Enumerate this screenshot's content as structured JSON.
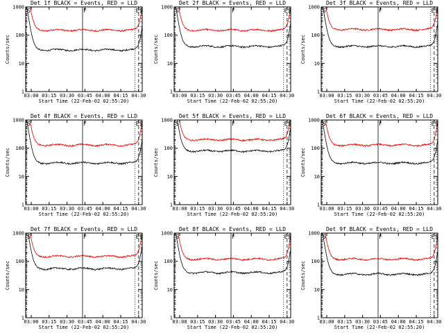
{
  "chart_data": [
    {
      "type": "line",
      "title": "Det 1f BLACK = Events, RED = LLD",
      "xlabel": "Start Time (22-Feb-02 02:55:20)",
      "ylabel": "Counts/sec",
      "yscale": "log",
      "ylim": [
        1,
        1000
      ],
      "xlim": [
        "02:55:20",
        "04:33:00"
      ],
      "x_ticks": [
        "03:00",
        "03:15",
        "03:30",
        "03:45",
        "04:00",
        "04:15",
        "04:30"
      ],
      "y_ticks": [
        "1",
        "10",
        "100",
        "1000"
      ],
      "markers": [
        {
          "label": "S",
          "time": "02:56"
        },
        {
          "label": "F",
          "time": "03:43"
        },
        {
          "label": "E",
          "time": "04:27"
        },
        {
          "label": "S",
          "time": "04:30"
        }
      ],
      "series": [
        {
          "name": "RED = LLD",
          "color": "#e00000",
          "level": 150
        },
        {
          "name": "BLACK = Events",
          "color": "#000000",
          "level": 30
        }
      ]
    },
    {
      "type": "line",
      "title": "Det 2f BLACK = Events, RED = LLD",
      "xlabel": "Start Time (22-Feb-02 02:55:20)",
      "ylabel": "Counts/sec",
      "yscale": "log",
      "ylim": [
        1,
        1000
      ],
      "xlim": [
        "02:55:20",
        "04:33:00"
      ],
      "x_ticks": [
        "03:00",
        "03:15",
        "03:30",
        "03:45",
        "04:00",
        "04:15",
        "04:30"
      ],
      "y_ticks": [
        "1",
        "10",
        "100",
        "1000"
      ],
      "markers": [
        {
          "label": "S",
          "time": "02:56"
        },
        {
          "label": "F",
          "time": "03:43"
        },
        {
          "label": "E",
          "time": "04:27"
        },
        {
          "label": "S",
          "time": "04:30"
        }
      ],
      "series": [
        {
          "name": "RED = LLD",
          "color": "#e00000",
          "level": 150
        },
        {
          "name": "BLACK = Events",
          "color": "#000000",
          "level": 40
        }
      ]
    },
    {
      "type": "line",
      "title": "Det 3f BLACK = Events, RED = LLD",
      "xlabel": "Start Time (22-Feb-02 02:55:20)",
      "ylabel": "Counts/sec",
      "yscale": "log",
      "ylim": [
        1,
        1000
      ],
      "xlim": [
        "02:55:20",
        "04:33:00"
      ],
      "x_ticks": [
        "03:00",
        "03:15",
        "03:30",
        "03:45",
        "04:00",
        "04:15",
        "04:30"
      ],
      "y_ticks": [
        "1",
        "10",
        "100",
        "1000"
      ],
      "markers": [
        {
          "label": "S",
          "time": "02:56"
        },
        {
          "label": "F",
          "time": "03:43"
        },
        {
          "label": "E",
          "time": "04:27"
        },
        {
          "label": "S",
          "time": "04:30"
        }
      ],
      "series": [
        {
          "name": "RED = LLD",
          "color": "#e00000",
          "level": 160
        },
        {
          "name": "BLACK = Events",
          "color": "#000000",
          "level": 40
        }
      ]
    },
    {
      "type": "line",
      "title": "Det 4f BLACK = Events, RED = LLD",
      "xlabel": "Start Time (22-Feb-02 02:55:20)",
      "ylabel": "Counts/sec",
      "yscale": "log",
      "ylim": [
        1,
        1000
      ],
      "xlim": [
        "02:55:20",
        "04:33:00"
      ],
      "x_ticks": [
        "03:00",
        "03:15",
        "03:30",
        "03:45",
        "04:00",
        "04:15",
        "04:30"
      ],
      "y_ticks": [
        "1",
        "10",
        "100",
        "1000"
      ],
      "markers": [
        {
          "label": "S",
          "time": "02:56"
        },
        {
          "label": "F",
          "time": "03:43"
        },
        {
          "label": "E",
          "time": "04:27"
        },
        {
          "label": "S",
          "time": "04:30"
        }
      ],
      "series": [
        {
          "name": "RED = LLD",
          "color": "#e00000",
          "level": 130
        },
        {
          "name": "BLACK = Events",
          "color": "#000000",
          "level": 30
        }
      ]
    },
    {
      "type": "line",
      "title": "Det 5f BLACK = Events, RED = LLD",
      "xlabel": "Start Time (22-Feb-02 02:55:20)",
      "ylabel": "Counts/sec",
      "yscale": "log",
      "ylim": [
        1,
        1000
      ],
      "xlim": [
        "02:55:20",
        "04:33:00"
      ],
      "x_ticks": [
        "03:00",
        "03:15",
        "03:30",
        "03:45",
        "04:00",
        "04:15",
        "04:30"
      ],
      "y_ticks": [
        "1",
        "10",
        "100",
        "1000"
      ],
      "markers": [
        {
          "label": "S",
          "time": "02:56"
        },
        {
          "label": "F",
          "time": "03:43"
        },
        {
          "label": "E",
          "time": "04:27"
        },
        {
          "label": "S",
          "time": "04:30"
        }
      ],
      "series": [
        {
          "name": "RED = LLD",
          "color": "#e00000",
          "level": 200
        },
        {
          "name": "BLACK = Events",
          "color": "#000000",
          "level": 80
        }
      ]
    },
    {
      "type": "line",
      "title": "Det 6f BLACK = Events, RED = LLD",
      "xlabel": "Start Time (22-Feb-02 02:55:20)",
      "ylabel": "Counts/sec",
      "yscale": "log",
      "ylim": [
        1,
        1000
      ],
      "xlim": [
        "02:55:20",
        "04:33:00"
      ],
      "x_ticks": [
        "03:00",
        "03:15",
        "03:30",
        "03:45",
        "04:00",
        "04:15",
        "04:30"
      ],
      "y_ticks": [
        "1",
        "10",
        "100",
        "1000"
      ],
      "markers": [
        {
          "label": "S",
          "time": "02:56"
        },
        {
          "label": "F",
          "time": "03:43"
        },
        {
          "label": "E",
          "time": "04:27"
        },
        {
          "label": "S",
          "time": "04:30"
        }
      ],
      "series": [
        {
          "name": "RED = LLD",
          "color": "#e00000",
          "level": 130
        },
        {
          "name": "BLACK = Events",
          "color": "#000000",
          "level": 30
        }
      ]
    },
    {
      "type": "line",
      "title": "Det 7f BLACK = Events, RED = LLD",
      "xlabel": "Start Time (22-Feb-02 02:55:20)",
      "ylabel": "Counts/sec",
      "yscale": "log",
      "ylim": [
        1,
        1000
      ],
      "xlim": [
        "02:55:20",
        "04:33:00"
      ],
      "x_ticks": [
        "03:00",
        "03:15",
        "03:30",
        "03:45",
        "04:00",
        "04:15",
        "04:30"
      ],
      "y_ticks": [
        "1",
        "10",
        "100",
        "1000"
      ],
      "markers": [
        {
          "label": "S",
          "time": "02:56"
        },
        {
          "label": "F",
          "time": "03:43"
        },
        {
          "label": "E",
          "time": "04:27"
        },
        {
          "label": "S",
          "time": "04:30"
        }
      ],
      "series": [
        {
          "name": "RED = LLD",
          "color": "#e00000",
          "level": 150
        },
        {
          "name": "BLACK = Events",
          "color": "#000000",
          "level": 55
        }
      ]
    },
    {
      "type": "line",
      "title": "Det 8f BLACK = Events, RED = LLD",
      "xlabel": "Start Time (22-Feb-02 02:55:20)",
      "ylabel": "Counts/sec",
      "yscale": "log",
      "ylim": [
        1,
        1000
      ],
      "xlim": [
        "02:55:20",
        "04:33:00"
      ],
      "x_ticks": [
        "03:00",
        "03:15",
        "03:30",
        "03:45",
        "04:00",
        "04:15",
        "04:30"
      ],
      "y_ticks": [
        "1",
        "10",
        "100",
        "1000"
      ],
      "markers": [
        {
          "label": "S",
          "time": "02:56"
        },
        {
          "label": "F",
          "time": "03:43"
        },
        {
          "label": "E",
          "time": "04:27"
        },
        {
          "label": "S",
          "time": "04:30"
        }
      ],
      "series": [
        {
          "name": "RED = LLD",
          "color": "#e00000",
          "level": 120
        },
        {
          "name": "BLACK = Events",
          "color": "#000000",
          "level": 40
        }
      ]
    },
    {
      "type": "line",
      "title": "Det 9f BLACK = Events, RED = LLD",
      "xlabel": "Start Time (22-Feb-02 02:55:20)",
      "ylabel": "Counts/sec",
      "yscale": "log",
      "ylim": [
        1,
        1000
      ],
      "xlim": [
        "02:55:20",
        "04:33:00"
      ],
      "x_ticks": [
        "03:00",
        "03:15",
        "03:30",
        "03:45",
        "04:00",
        "04:15",
        "04:30"
      ],
      "y_ticks": [
        "1",
        "10",
        "100",
        "1000"
      ],
      "markers": [
        {
          "label": "S",
          "time": "02:56"
        },
        {
          "label": "F",
          "time": "03:43"
        },
        {
          "label": "E",
          "time": "04:27"
        },
        {
          "label": "S",
          "time": "04:30"
        }
      ],
      "series": [
        {
          "name": "RED = LLD",
          "color": "#e00000",
          "level": 120
        },
        {
          "name": "BLACK = Events",
          "color": "#000000",
          "level": 35
        }
      ]
    }
  ]
}
